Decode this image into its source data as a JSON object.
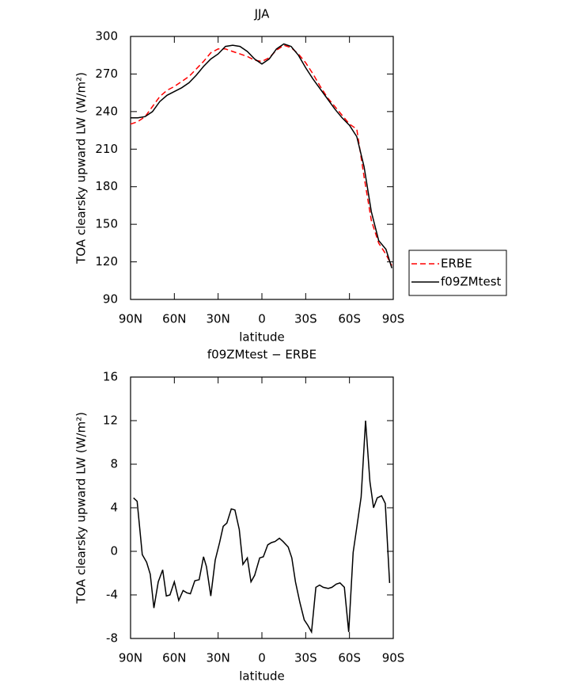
{
  "chart_data": [
    {
      "type": "line",
      "title": "JJA",
      "xlabel": "latitude",
      "ylabel": "TOA clearsky upward LW (W/m²)",
      "x": [
        90,
        85,
        80,
        75,
        70,
        65,
        60,
        55,
        50,
        45,
        40,
        35,
        30,
        25,
        20,
        15,
        10,
        5,
        0,
        -5,
        -10,
        -15,
        -20,
        -25,
        -30,
        -35,
        -40,
        -45,
        -50,
        -55,
        -60,
        -65,
        -70,
        -75,
        -80,
        -85,
        -89
      ],
      "series": [
        {
          "name": "ERBE",
          "color": "#ff0000",
          "dashed": true,
          "values": [
            230,
            232,
            236,
            244,
            252,
            257,
            260,
            264,
            268,
            274,
            280,
            287,
            290,
            290,
            288,
            286,
            284,
            281,
            280,
            283,
            289,
            293,
            291,
            286,
            279,
            270,
            260,
            251,
            244,
            237,
            230,
            226,
            188,
            153,
            135,
            126,
            117
          ]
        },
        {
          "name": "f09ZMtest",
          "color": "#000000",
          "dashed": false,
          "values": [
            235,
            235,
            236,
            240,
            248,
            253,
            256,
            259,
            263,
            269,
            276,
            282,
            286,
            292,
            293,
            292,
            288,
            282,
            278,
            282,
            290,
            294,
            292,
            285,
            275,
            266,
            258,
            250,
            242,
            235,
            229,
            220,
            196,
            160,
            137,
            130,
            115
          ]
        }
      ],
      "xlim": [
        90,
        -90
      ],
      "xticks": [
        {
          "value": 90,
          "label": "90N"
        },
        {
          "value": 60,
          "label": "60N"
        },
        {
          "value": 30,
          "label": "30N"
        },
        0,
        {
          "value": -30,
          "label": "30S"
        },
        {
          "value": -60,
          "label": "60S"
        },
        {
          "value": -90,
          "label": "90S"
        }
      ],
      "ylim": [
        90,
        300
      ],
      "yticks": [
        90,
        120,
        150,
        180,
        210,
        240,
        270,
        300
      ],
      "legend": "right"
    },
    {
      "type": "line",
      "title": "f09ZMtest − ERBE",
      "xlabel": "latitude",
      "ylabel": "TOA clearsky upward LW (W/m²)",
      "x": [
        88,
        85.5,
        82,
        79,
        76.5,
        74,
        71,
        68,
        65.5,
        63,
        60,
        57,
        54,
        51.5,
        49,
        46,
        43,
        40,
        38,
        35,
        32,
        29,
        26.5,
        24,
        21,
        18.5,
        15.5,
        13,
        10,
        7.5,
        5,
        1.5,
        -1,
        -4,
        -6.5,
        -9,
        -12,
        -14.5,
        -18,
        -20.5,
        -23,
        -26,
        -29,
        -31.5,
        -34,
        -37,
        -39.5,
        -42,
        -45.5,
        -48,
        -51,
        -53.5,
        -56.5,
        -59.5,
        -62.5,
        -65,
        -68,
        -71,
        -74,
        -76.5,
        -79,
        -82,
        -84.5,
        -87.5
      ],
      "values": [
        4.9,
        4.6,
        -0.3,
        -1,
        -2.1,
        -5.2,
        -2.8,
        -1.7,
        -4.1,
        -4,
        -2.8,
        -4.5,
        -3.6,
        -3.8,
        -3.9,
        -2.7,
        -2.6,
        -0.5,
        -1.4,
        -4.1,
        -0.8,
        0.8,
        2.3,
        2.6,
        3.9,
        3.8,
        2,
        -1.2,
        -0.6,
        -2.8,
        -2.2,
        -0.6,
        -0.5,
        0.6,
        0.8,
        0.9,
        1.2,
        0.9,
        0.4,
        -0.6,
        -2.8,
        -4.7,
        -6.3,
        -6.8,
        -7.4,
        -3.3,
        -3.1,
        -3.3,
        -3.4,
        -3.3,
        -3,
        -2.9,
        -3.3,
        -7.4,
        -0.1,
        2.2,
        5,
        12,
        6.4,
        4,
        4.9,
        5.1,
        4.4,
        -2.9
      ],
      "color": "#000000",
      "xlim": [
        90,
        -90
      ],
      "xticks": [
        {
          "value": 90,
          "label": "90N"
        },
        {
          "value": 60,
          "label": "60N"
        },
        {
          "value": 30,
          "label": "30N"
        },
        0,
        {
          "value": -30,
          "label": "30S"
        },
        {
          "value": -60,
          "label": "60S"
        },
        {
          "value": -90,
          "label": "90S"
        }
      ],
      "ylim": [
        -8,
        16
      ],
      "yticks": [
        -8,
        -4,
        0,
        4,
        8,
        12,
        16
      ]
    }
  ]
}
